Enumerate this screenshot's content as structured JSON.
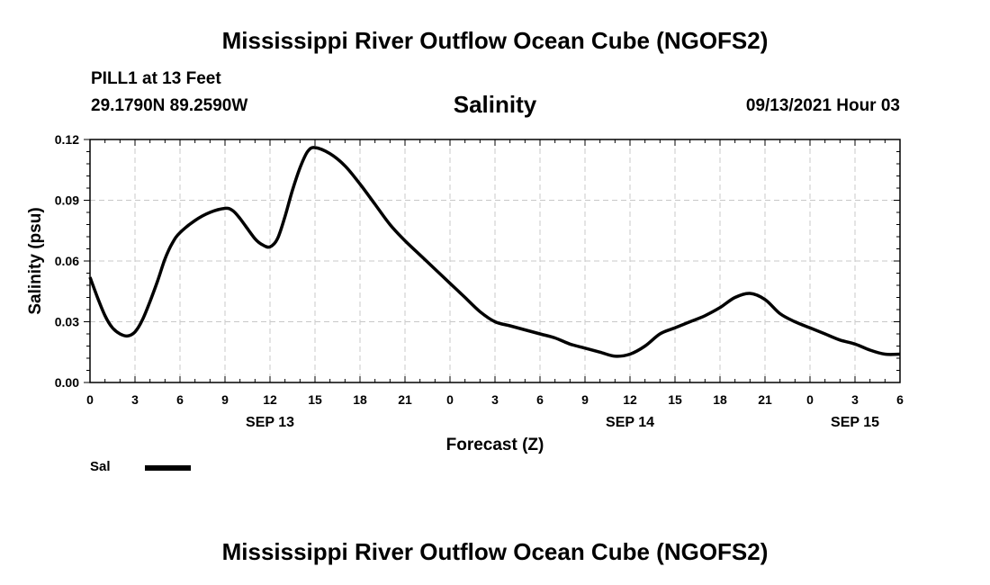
{
  "header": {
    "title": "Mississippi River Outflow Ocean Cube (NGOFS2)",
    "station": "PILL1 at 13 Feet",
    "coords": "29.1790N  89.2590W",
    "variable": "Salinity",
    "datetime": "09/13/2021 Hour 03"
  },
  "footer": {
    "title": "Mississippi River Outflow Ocean Cube (NGOFS2)"
  },
  "legend": {
    "label": "Sal"
  },
  "chart_data": {
    "type": "line",
    "title": "Salinity",
    "xlabel": "Forecast (Z)",
    "ylabel": "Salinity (psu)",
    "xlim": [
      0,
      54
    ],
    "ylim": [
      0,
      0.12
    ],
    "grid": true,
    "x_ticks": [
      {
        "hour": 0,
        "label": "0"
      },
      {
        "hour": 3,
        "label": "3"
      },
      {
        "hour": 6,
        "label": "6"
      },
      {
        "hour": 9,
        "label": "9"
      },
      {
        "hour": 12,
        "label": "12"
      },
      {
        "hour": 15,
        "label": "15"
      },
      {
        "hour": 18,
        "label": "18"
      },
      {
        "hour": 21,
        "label": "21"
      },
      {
        "hour": 24,
        "label": "0"
      },
      {
        "hour": 27,
        "label": "3"
      },
      {
        "hour": 30,
        "label": "6"
      },
      {
        "hour": 33,
        "label": "9"
      },
      {
        "hour": 36,
        "label": "12"
      },
      {
        "hour": 39,
        "label": "15"
      },
      {
        "hour": 42,
        "label": "18"
      },
      {
        "hour": 45,
        "label": "21"
      },
      {
        "hour": 48,
        "label": "0"
      },
      {
        "hour": 51,
        "label": "3"
      },
      {
        "hour": 54,
        "label": "6"
      }
    ],
    "date_labels": [
      {
        "hour": 12,
        "label": "SEP 13"
      },
      {
        "hour": 36,
        "label": "SEP 14"
      },
      {
        "hour": 51,
        "label": "SEP 15"
      }
    ],
    "y_ticks": [
      {
        "value": 0,
        "label": "0.00"
      },
      {
        "value": 0.03,
        "label": "0.03"
      },
      {
        "value": 0.06,
        "label": "0.06"
      },
      {
        "value": 0.09,
        "label": "0.09"
      },
      {
        "value": 0.12,
        "label": "0.12"
      }
    ],
    "series": [
      {
        "name": "Sal",
        "x": [
          0,
          0.5,
          1,
          1.5,
          2,
          2.5,
          3,
          3.5,
          4,
          4.5,
          5,
          5.5,
          6,
          7,
          8,
          9,
          9.5,
          10,
          11,
          11.5,
          12,
          12.5,
          13,
          13.5,
          14,
          14.5,
          15,
          16,
          17,
          18,
          19,
          20,
          21,
          22,
          23,
          24,
          25,
          26,
          27,
          28,
          29,
          30,
          31,
          32,
          33,
          34,
          35,
          36,
          37,
          38,
          39,
          40,
          41,
          42,
          43,
          44,
          45,
          46,
          47,
          48,
          49,
          50,
          51,
          52,
          53,
          54
        ],
        "y": [
          0.052,
          0.042,
          0.033,
          0.027,
          0.024,
          0.023,
          0.025,
          0.031,
          0.04,
          0.05,
          0.061,
          0.069,
          0.074,
          0.08,
          0.084,
          0.086,
          0.085,
          0.081,
          0.071,
          0.068,
          0.067,
          0.071,
          0.082,
          0.095,
          0.106,
          0.114,
          0.116,
          0.113,
          0.107,
          0.098,
          0.088,
          0.078,
          0.07,
          0.063,
          0.056,
          0.049,
          0.042,
          0.035,
          0.03,
          0.028,
          0.026,
          0.024,
          0.022,
          0.019,
          0.017,
          0.015,
          0.013,
          0.014,
          0.018,
          0.024,
          0.027,
          0.03,
          0.033,
          0.037,
          0.042,
          0.044,
          0.041,
          0.034,
          0.03,
          0.027,
          0.024,
          0.021,
          0.019,
          0.016,
          0.014,
          0.014
        ]
      }
    ]
  }
}
